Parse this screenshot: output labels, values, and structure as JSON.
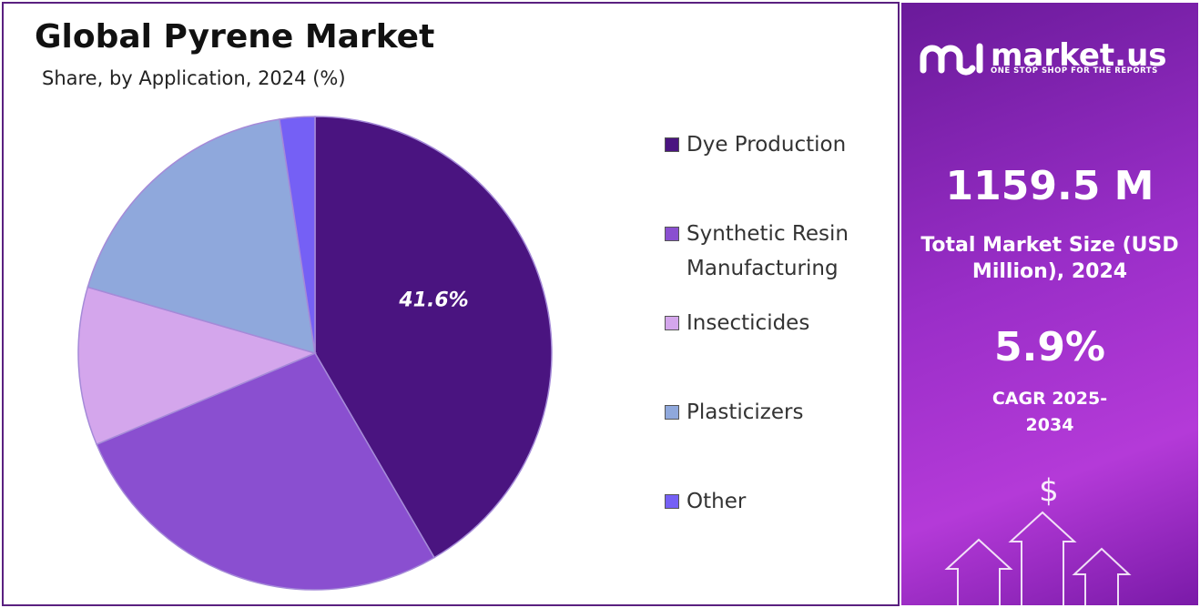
{
  "chart_data": {
    "type": "pie",
    "title": "Global Pyrene Market",
    "subtitle": "Share, by Application, 2024 (%)",
    "categories": [
      "Dye Production",
      "Synthetic Resin Manufacturing",
      "Insecticides",
      "Plasticizers",
      "Other"
    ],
    "values": [
      41.6,
      27.1,
      10.8,
      18.1,
      2.4
    ],
    "value_labels": [
      "41.6%",
      null,
      null,
      null,
      null
    ],
    "colors": [
      "#4a1480",
      "#8a4fd0",
      "#d4a6ec",
      "#8fa8dc",
      "#7560f5"
    ],
    "legend": "right"
  },
  "panel": {
    "logo": "market.us",
    "tagline": "ONE STOP SHOP FOR THE REPORTS",
    "market_size": "1159.5 M",
    "market_size_label": "Total Market Size (USD Million), 2024",
    "cagr": "5.9%",
    "cagr_label": "CAGR 2025-2034"
  }
}
